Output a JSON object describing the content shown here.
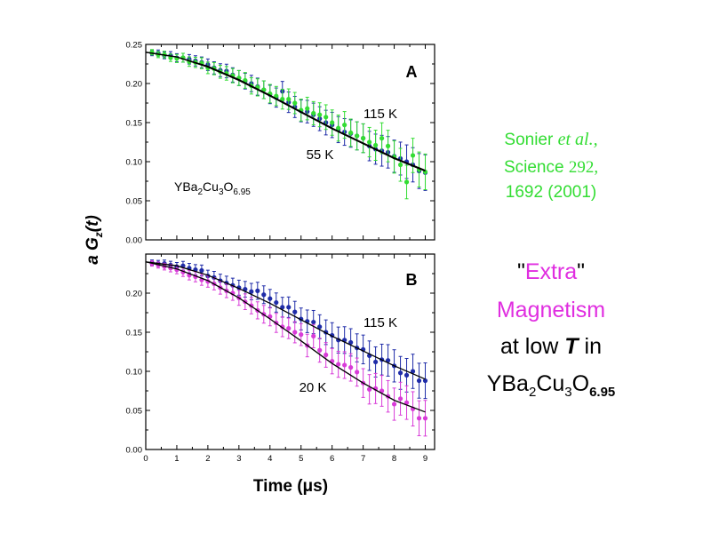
{
  "chart_data": [
    {
      "panel": "A",
      "type": "scatter",
      "ylim": [
        0,
        0.25
      ],
      "xlim": [
        0,
        9.3
      ],
      "yticks": [
        "0.00",
        "0.05",
        "0.10",
        "0.15",
        "0.20",
        "0.25"
      ],
      "xticks": [],
      "sample": "YBa2Cu3O6.95",
      "series": [
        {
          "name": "115 K",
          "color": "#1f2ca8",
          "x": [
            0.2,
            0.4,
            0.6,
            0.8,
            1.0,
            1.2,
            1.4,
            1.6,
            1.8,
            2.0,
            2.2,
            2.4,
            2.6,
            2.8,
            3.0,
            3.2,
            3.4,
            3.6,
            3.8,
            4.0,
            4.2,
            4.4,
            4.6,
            4.8,
            5.0,
            5.2,
            5.4,
            5.6,
            5.8,
            6.0,
            6.2,
            6.4,
            6.6,
            6.8,
            7.0,
            7.2,
            7.4,
            7.6,
            7.8,
            8.0,
            8.2,
            8.4,
            8.6,
            8.8,
            9.0
          ],
          "y": [
            0.239,
            0.239,
            0.236,
            0.236,
            0.233,
            0.233,
            0.231,
            0.229,
            0.227,
            0.224,
            0.22,
            0.217,
            0.216,
            0.211,
            0.207,
            0.203,
            0.2,
            0.196,
            0.192,
            0.186,
            0.182,
            0.19,
            0.176,
            0.17,
            0.165,
            0.164,
            0.16,
            0.155,
            0.15,
            0.147,
            0.141,
            0.138,
            0.136,
            0.133,
            0.13,
            0.12,
            0.116,
            0.114,
            0.112,
            0.107,
            0.104,
            0.1,
            0.096,
            0.088,
            0.086
          ]
        },
        {
          "name": "55 K",
          "color": "#33dd33",
          "x": [
            0.2,
            0.4,
            0.6,
            0.8,
            1.0,
            1.2,
            1.4,
            1.6,
            1.8,
            2.0,
            2.2,
            2.4,
            2.6,
            2.8,
            3.0,
            3.2,
            3.4,
            3.6,
            3.8,
            4.0,
            4.2,
            4.4,
            4.6,
            4.8,
            5.0,
            5.2,
            5.4,
            5.6,
            5.8,
            6.0,
            6.2,
            6.4,
            6.6,
            6.8,
            7.0,
            7.2,
            7.4,
            7.6,
            7.8,
            8.0,
            8.2,
            8.4,
            8.6,
            8.8,
            9.0
          ],
          "y": [
            0.24,
            0.237,
            0.237,
            0.233,
            0.232,
            0.233,
            0.228,
            0.227,
            0.226,
            0.22,
            0.219,
            0.215,
            0.213,
            0.21,
            0.207,
            0.204,
            0.197,
            0.195,
            0.192,
            0.187,
            0.184,
            0.18,
            0.18,
            0.175,
            0.166,
            0.168,
            0.162,
            0.16,
            0.157,
            0.15,
            0.143,
            0.147,
            0.137,
            0.133,
            0.13,
            0.125,
            0.121,
            0.13,
            0.12,
            0.106,
            0.096,
            0.074,
            0.108,
            0.09,
            0.087
          ]
        }
      ],
      "fit_curves": [
        {
          "for": "115 K",
          "x": [
            0,
            1,
            2,
            3,
            4,
            5,
            6,
            7,
            8,
            9
          ],
          "y": [
            0.24,
            0.234,
            0.222,
            0.205,
            0.185,
            0.164,
            0.143,
            0.124,
            0.105,
            0.089
          ]
        },
        {
          "for": "55 K",
          "x": [
            0,
            1,
            2,
            3,
            4,
            5,
            6,
            7,
            8,
            9
          ],
          "y": [
            0.24,
            0.234,
            0.221,
            0.204,
            0.184,
            0.163,
            0.142,
            0.123,
            0.104,
            0.088
          ]
        }
      ]
    },
    {
      "panel": "B",
      "type": "scatter",
      "ylim": [
        0,
        0.25
      ],
      "xlim": [
        0,
        9.3
      ],
      "yticks": [
        "0.00",
        "0.05",
        "0.10",
        "0.15",
        "0.20",
        ""
      ],
      "xticks": [
        "0",
        "1",
        "2",
        "3",
        "4",
        "5",
        "6",
        "7",
        "8",
        "9"
      ],
      "xlabel": "Time (μs)",
      "ylabel": "a G",
      "series": [
        {
          "name": "115 K",
          "color": "#1f2ca8",
          "x": [
            0.2,
            0.4,
            0.6,
            0.8,
            1.0,
            1.2,
            1.4,
            1.6,
            1.8,
            2.0,
            2.2,
            2.4,
            2.6,
            2.8,
            3.0,
            3.2,
            3.4,
            3.6,
            3.8,
            4.0,
            4.2,
            4.4,
            4.6,
            4.8,
            5.0,
            5.2,
            5.4,
            5.6,
            5.8,
            6.0,
            6.2,
            6.4,
            6.6,
            6.8,
            7.0,
            7.2,
            7.4,
            7.6,
            7.8,
            8.0,
            8.2,
            8.4,
            8.6,
            8.8,
            9.0
          ],
          "y": [
            0.239,
            0.238,
            0.238,
            0.236,
            0.234,
            0.235,
            0.232,
            0.23,
            0.229,
            0.222,
            0.22,
            0.216,
            0.213,
            0.21,
            0.207,
            0.205,
            0.202,
            0.203,
            0.198,
            0.193,
            0.188,
            0.182,
            0.182,
            0.176,
            0.167,
            0.164,
            0.163,
            0.157,
            0.15,
            0.146,
            0.14,
            0.14,
            0.137,
            0.13,
            0.128,
            0.12,
            0.112,
            0.115,
            0.114,
            0.107,
            0.098,
            0.095,
            0.1,
            0.088,
            0.088
          ]
        },
        {
          "name": "20 K",
          "color": "#d83cd8",
          "x": [
            0.2,
            0.4,
            0.6,
            0.8,
            1.0,
            1.2,
            1.4,
            1.6,
            1.8,
            2.0,
            2.2,
            2.4,
            2.6,
            2.8,
            3.0,
            3.2,
            3.4,
            3.6,
            3.8,
            4.0,
            4.2,
            4.4,
            4.6,
            4.8,
            5.0,
            5.2,
            5.4,
            5.6,
            5.8,
            6.0,
            6.2,
            6.4,
            6.6,
            6.8,
            7.0,
            7.2,
            7.4,
            7.6,
            7.8,
            8.0,
            8.2,
            8.4,
            8.6,
            8.8,
            9.0
          ],
          "y": [
            0.238,
            0.236,
            0.234,
            0.232,
            0.23,
            0.227,
            0.223,
            0.221,
            0.217,
            0.215,
            0.212,
            0.207,
            0.203,
            0.2,
            0.194,
            0.189,
            0.184,
            0.178,
            0.173,
            0.17,
            0.162,
            0.157,
            0.155,
            0.15,
            0.147,
            0.133,
            0.145,
            0.127,
            0.121,
            0.113,
            0.109,
            0.108,
            0.105,
            0.099,
            0.085,
            0.077,
            0.078,
            0.075,
            0.068,
            0.058,
            0.065,
            0.06,
            0.052,
            0.04,
            0.04
          ]
        }
      ],
      "fit_curves": [
        {
          "for": "115 K",
          "x": [
            0,
            1,
            2,
            3,
            4,
            5,
            6,
            7,
            8,
            9
          ],
          "y": [
            0.24,
            0.235,
            0.223,
            0.206,
            0.187,
            0.166,
            0.145,
            0.126,
            0.107,
            0.09
          ]
        },
        {
          "for": "20 K",
          "x": [
            0,
            1,
            2,
            3,
            4,
            5,
            6,
            7,
            8,
            9
          ],
          "y": [
            0.24,
            0.231,
            0.216,
            0.194,
            0.167,
            0.139,
            0.11,
            0.085,
            0.063,
            0.048
          ]
        }
      ]
    }
  ],
  "panels": {
    "a": {
      "letter": "A",
      "label_115": "115 K",
      "label_low": "55 K",
      "sample_prefix": "YBa",
      "sample_sub1": "2",
      "sample_mid": "Cu",
      "sample_sub2": "3",
      "sample_mid2": "O",
      "sample_sub3": "6.95"
    },
    "b": {
      "letter": "B",
      "label_115": "115 K",
      "label_low": "20 K"
    }
  },
  "axes": {
    "ylabel_main": "a G",
    "ylabel_sub": "z",
    "ylabel_arg": "(t)",
    "xlabel": "Time (μs)"
  },
  "citation": {
    "author": "Sonier ",
    "etal": "et al.,",
    "journal": "Science ",
    "volume": "292,",
    "pages": "1692 (2001)"
  },
  "headline": {
    "q1": "\"",
    "extra": "Extra",
    "q2": "\"",
    "magnetism": "Magnetism",
    "at_low": "at low ",
    "T": "T",
    "in": " in",
    "f1": "YBa",
    "f_s1": "2",
    "f2": "Cu",
    "f_s2": "3",
    "f3": "O",
    "f_s3": "6.95"
  },
  "colors": {
    "blue_115K": "#1f2ca8",
    "green_55K": "#33dd33",
    "magenta_20K": "#d83cd8",
    "magenta_text": "#e02ee0"
  }
}
